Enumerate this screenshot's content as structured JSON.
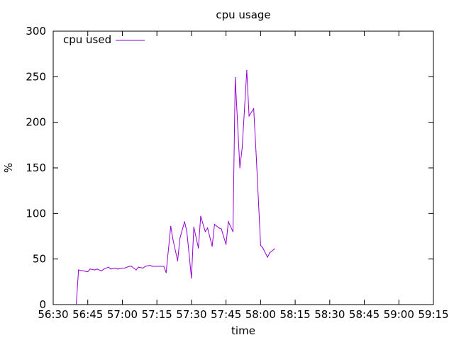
{
  "chart_data": {
    "type": "line",
    "title": "cpu usage",
    "xlabel": "time",
    "ylabel": "%",
    "x_unit": "mm:ss",
    "xlim": [
      "56:30",
      "59:15"
    ],
    "ylim": [
      0,
      300
    ],
    "x_ticks": [
      "56:30",
      "56:45",
      "57:00",
      "57:15",
      "57:30",
      "57:45",
      "58:00",
      "58:15",
      "58:30",
      "58:45",
      "59:00",
      "59:15"
    ],
    "y_ticks": [
      0,
      50,
      100,
      150,
      200,
      250,
      300
    ],
    "grid": false,
    "legend_position": "top-left",
    "series": [
      {
        "name": "cpu used",
        "color": "#9400d3",
        "points": [
          [
            "56:40",
            0
          ],
          [
            "56:41",
            38
          ],
          [
            "56:43",
            37
          ],
          [
            "56:45",
            36
          ],
          [
            "56:46",
            39
          ],
          [
            "56:48",
            38
          ],
          [
            "56:49",
            39
          ],
          [
            "56:51",
            37
          ],
          [
            "56:52",
            39
          ],
          [
            "56:54",
            41
          ],
          [
            "56:55",
            39
          ],
          [
            "56:57",
            40
          ],
          [
            "56:58",
            39
          ],
          [
            "57:00",
            40
          ],
          [
            "57:01",
            40
          ],
          [
            "57:03",
            42
          ],
          [
            "57:04",
            42
          ],
          [
            "57:06",
            38
          ],
          [
            "57:07",
            41
          ],
          [
            "57:09",
            40
          ],
          [
            "57:10",
            42
          ],
          [
            "57:12",
            43
          ],
          [
            "57:13",
            42
          ],
          [
            "57:15",
            42
          ],
          [
            "57:16",
            42
          ],
          [
            "57:18",
            42
          ],
          [
            "57:19",
            35
          ],
          [
            "57:21",
            86
          ],
          [
            "57:22",
            71
          ],
          [
            "57:24",
            48
          ],
          [
            "57:25",
            73
          ],
          [
            "57:27",
            91
          ],
          [
            "57:28",
            80
          ],
          [
            "57:30",
            29
          ],
          [
            "57:31",
            85
          ],
          [
            "57:33",
            62
          ],
          [
            "57:34",
            97
          ],
          [
            "57:36",
            80
          ],
          [
            "57:37",
            84
          ],
          [
            "57:39",
            64
          ],
          [
            "57:40",
            88
          ],
          [
            "57:42",
            84
          ],
          [
            "57:43",
            83
          ],
          [
            "57:45",
            66
          ],
          [
            "57:46",
            91
          ],
          [
            "57:48",
            80
          ],
          [
            "57:49",
            249
          ],
          [
            "57:51",
            150
          ],
          [
            "57:52",
            172
          ],
          [
            "57:54",
            257
          ],
          [
            "57:55",
            207
          ],
          [
            "57:57",
            215
          ],
          [
            "57:58",
            168
          ],
          [
            "58:00",
            65
          ],
          [
            "58:01",
            62
          ],
          [
            "58:03",
            52
          ],
          [
            "58:04",
            57
          ],
          [
            "58:06",
            61
          ]
        ]
      }
    ]
  }
}
